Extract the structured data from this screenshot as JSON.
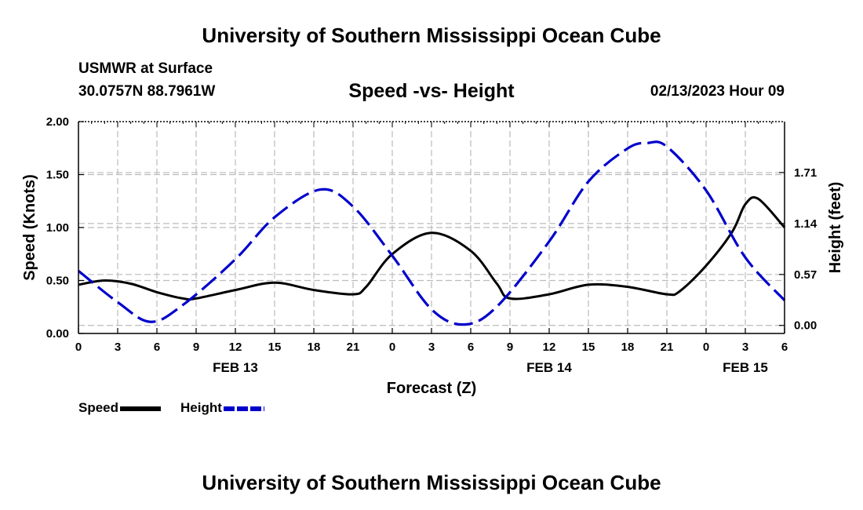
{
  "header": {
    "title": "University of Southern Mississippi Ocean Cube",
    "station": "USMWR at Surface",
    "coords": "30.0757N  88.7961W",
    "plot_title": "Speed -vs- Height",
    "datetime": "02/13/2023 Hour 09"
  },
  "footer": {
    "title": "University of Southern Mississippi Ocean Cube"
  },
  "colors": {
    "speed": "#000000",
    "height": "#0000cc",
    "grid": "#bbbbbb"
  },
  "chart_data": {
    "type": "line",
    "xlabel": "Forecast (Z)",
    "ylabel_left": "Speed (Knots)",
    "ylabel_right": "Height (feet)",
    "x_range_hours": [
      0,
      54
    ],
    "x_ticks": [
      {
        "h": 0,
        "label": "0"
      },
      {
        "h": 3,
        "label": "3"
      },
      {
        "h": 6,
        "label": "6"
      },
      {
        "h": 9,
        "label": "9"
      },
      {
        "h": 12,
        "label": "12"
      },
      {
        "h": 15,
        "label": "15"
      },
      {
        "h": 18,
        "label": "18"
      },
      {
        "h": 21,
        "label": "21"
      },
      {
        "h": 24,
        "label": "0"
      },
      {
        "h": 27,
        "label": "3"
      },
      {
        "h": 30,
        "label": "6"
      },
      {
        "h": 33,
        "label": "9"
      },
      {
        "h": 36,
        "label": "12"
      },
      {
        "h": 39,
        "label": "15"
      },
      {
        "h": 42,
        "label": "18"
      },
      {
        "h": 45,
        "label": "21"
      },
      {
        "h": 48,
        "label": "0"
      },
      {
        "h": 51,
        "label": "3"
      },
      {
        "h": 54,
        "label": "6"
      }
    ],
    "date_labels": [
      {
        "h": 12,
        "label": "FEB 13"
      },
      {
        "h": 36,
        "label": "FEB 14"
      },
      {
        "h": 51,
        "label": "FEB 15"
      }
    ],
    "ylim_left": [
      0,
      2.0
    ],
    "y_ticks_left": [
      {
        "v": 0.0,
        "label": "0.00"
      },
      {
        "v": 0.5,
        "label": "0.50"
      },
      {
        "v": 1.0,
        "label": "1.00"
      },
      {
        "v": 1.5,
        "label": "1.50"
      },
      {
        "v": 2.0,
        "label": "2.00"
      }
    ],
    "ylim_right": [
      -0.09,
      2.28
    ],
    "y_ticks_right": [
      {
        "v": 0.0,
        "label": "0.00"
      },
      {
        "v": 0.57,
        "label": "0.57"
      },
      {
        "v": 1.14,
        "label": "1.14"
      },
      {
        "v": 1.71,
        "label": "1.71"
      }
    ],
    "series": [
      {
        "name": "Speed",
        "axis": "left",
        "style": "solid",
        "x": [
          0,
          2,
          4,
          6,
          8,
          9,
          12,
          15,
          18,
          21,
          22,
          24,
          27,
          30,
          32,
          33,
          36,
          39,
          42,
          45,
          46,
          48,
          50,
          51,
          52,
          54
        ],
        "y": [
          0.46,
          0.5,
          0.47,
          0.39,
          0.33,
          0.33,
          0.41,
          0.48,
          0.41,
          0.37,
          0.44,
          0.75,
          0.95,
          0.78,
          0.47,
          0.33,
          0.37,
          0.46,
          0.44,
          0.37,
          0.4,
          0.64,
          0.96,
          1.22,
          1.27,
          1.0
        ]
      },
      {
        "name": "Height",
        "axis": "right",
        "style": "dashed",
        "x": [
          0,
          3,
          5.5,
          8,
          12,
          15,
          18.5,
          21,
          24,
          27,
          29.5,
          32,
          36,
          39,
          42,
          43.5,
          45,
          48,
          51,
          54
        ],
        "y": [
          0.61,
          0.26,
          0.04,
          0.23,
          0.74,
          1.21,
          1.52,
          1.33,
          0.78,
          0.18,
          0.01,
          0.21,
          0.94,
          1.61,
          1.98,
          2.04,
          2.0,
          1.51,
          0.76,
          0.28
        ]
      }
    ],
    "legend": [
      {
        "name": "Speed",
        "label": "Speed"
      },
      {
        "name": "Height",
        "label": "Height"
      }
    ],
    "grid": true
  }
}
